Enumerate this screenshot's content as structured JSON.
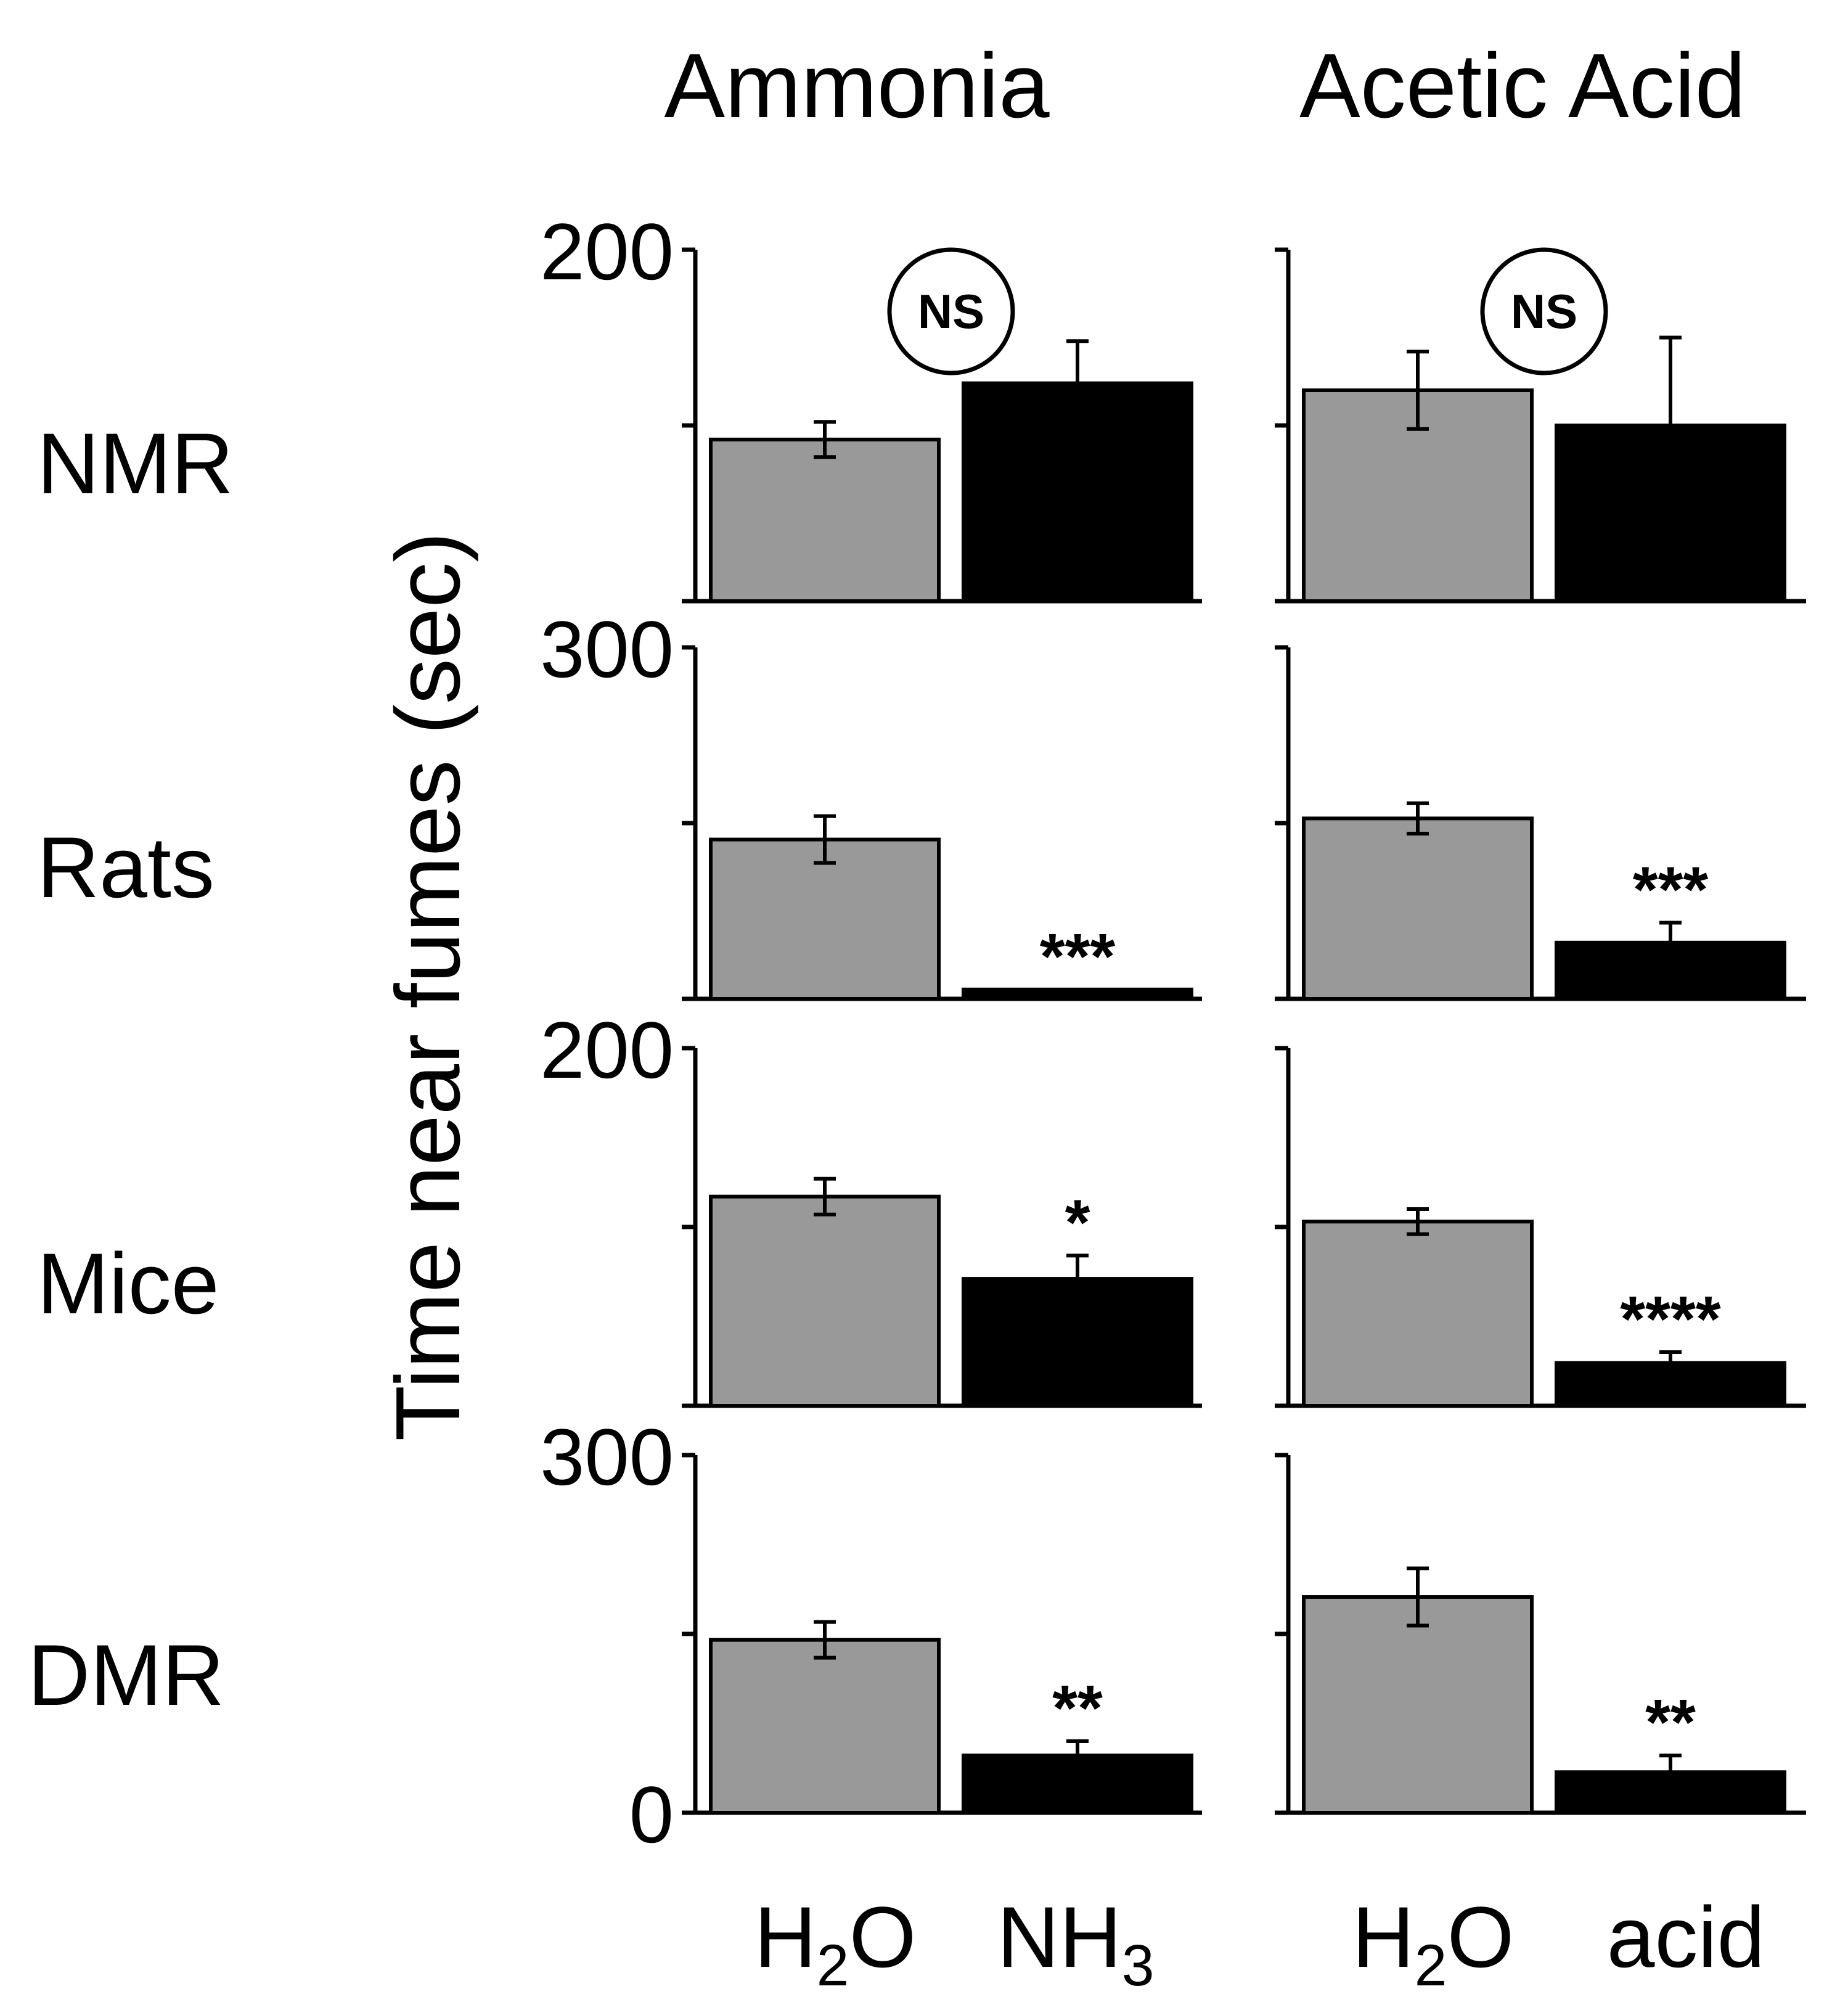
{
  "figure": {
    "columns": [
      "Ammonia",
      "Acetic Acid"
    ],
    "rows": [
      "NMR",
      "Rats",
      "Mice",
      "DMR"
    ],
    "ylabel": "Time near fumes (sec)",
    "xlabels": [
      {
        "base": "H",
        "sub": "2",
        "rest": "O"
      },
      {
        "base": "NH",
        "sub": "3",
        "rest": ""
      },
      {
        "base": "H",
        "sub": "2",
        "rest": "O"
      },
      {
        "base": "acid",
        "sub": "",
        "rest": ""
      }
    ]
  },
  "colors": {
    "control": "#999999",
    "treatment": "#000000"
  },
  "chart_data": [
    {
      "type": "bar",
      "row": "NMR",
      "column": "Ammonia",
      "categories": [
        "H2O",
        "NH3"
      ],
      "ylim": [
        0,
        200
      ],
      "ytick_labels": [
        "200"
      ],
      "values": [
        92,
        124
      ],
      "errors": [
        10,
        24
      ],
      "significance": "NS"
    },
    {
      "type": "bar",
      "row": "NMR",
      "column": "Acetic Acid",
      "categories": [
        "H2O",
        "acid"
      ],
      "ylim": [
        0,
        200
      ],
      "ytick_labels": [],
      "values": [
        120,
        100
      ],
      "errors": [
        22,
        50
      ],
      "significance": "NS"
    },
    {
      "type": "bar",
      "row": "Rats",
      "column": "Ammonia",
      "categories": [
        "H2O",
        "NH3"
      ],
      "ylim": [
        0,
        300
      ],
      "ytick_labels": [
        "300"
      ],
      "values": [
        136,
        8
      ],
      "errors": [
        20,
        0
      ],
      "significance": "***"
    },
    {
      "type": "bar",
      "row": "Rats",
      "column": "Acetic Acid",
      "categories": [
        "H2O",
        "acid"
      ],
      "ylim": [
        0,
        300
      ],
      "ytick_labels": [],
      "values": [
        154,
        48
      ],
      "errors": [
        13,
        17
      ],
      "significance": "***"
    },
    {
      "type": "bar",
      "row": "Mice",
      "column": "Ammonia",
      "categories": [
        "H2O",
        "NH3"
      ],
      "ylim": [
        0,
        200
      ],
      "ytick_labels": [
        "200"
      ],
      "values": [
        117,
        71
      ],
      "errors": [
        10,
        13
      ],
      "significance": "*"
    },
    {
      "type": "bar",
      "row": "Mice",
      "column": "Acetic Acid",
      "categories": [
        "H2O",
        "acid"
      ],
      "ylim": [
        0,
        200
      ],
      "ytick_labels": [],
      "values": [
        103,
        24
      ],
      "errors": [
        7,
        6
      ],
      "significance": "****"
    },
    {
      "type": "bar",
      "row": "DMR",
      "column": "Ammonia",
      "categories": [
        "H2O",
        "NH3"
      ],
      "ylim": [
        0,
        300
      ],
      "ytick_labels": [
        "300",
        "0"
      ],
      "values": [
        145,
        48
      ],
      "errors": [
        15,
        12
      ],
      "significance": "**"
    },
    {
      "type": "bar",
      "row": "DMR",
      "column": "Acetic Acid",
      "categories": [
        "H2O",
        "acid"
      ],
      "ylim": [
        0,
        300
      ],
      "ytick_labels": [],
      "values": [
        181,
        34
      ],
      "errors": [
        24,
        14
      ],
      "significance": "**"
    }
  ]
}
